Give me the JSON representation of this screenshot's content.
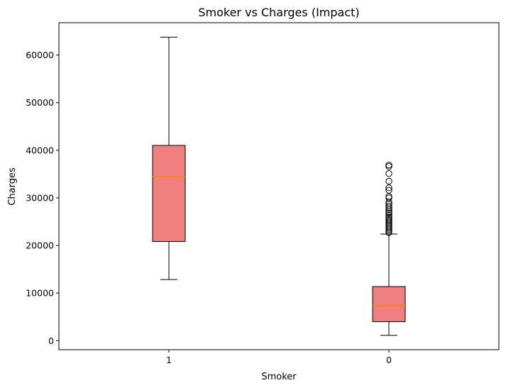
{
  "chart_data": {
    "type": "box",
    "title": "Smoker vs Charges (Impact)",
    "xlabel": "Smoker",
    "ylabel": "Charges",
    "ylim": [
      -1900,
      66800
    ],
    "yticks": [
      0,
      10000,
      20000,
      30000,
      40000,
      50000,
      60000
    ],
    "categories": [
      "1",
      "0"
    ],
    "grid": false,
    "series": [
      {
        "category": "1",
        "whisker_low": 12830,
        "q1": 20830,
        "median": 34460,
        "q3": 41020,
        "whisker_high": 63770,
        "outliers": []
      },
      {
        "category": "0",
        "whisker_low": 1120,
        "q1": 3990,
        "median": 7350,
        "q3": 11360,
        "whisker_high": 22400,
        "outliers": [
          22700,
          23000,
          23300,
          23600,
          23900,
          24200,
          24500,
          24800,
          25100,
          25400,
          25700,
          26000,
          26400,
          26800,
          27100,
          27500,
          27900,
          28300,
          28700,
          29100,
          30000,
          30300,
          31600,
          32100,
          33500,
          35100,
          36600,
          36900
        ]
      }
    ],
    "colors": {
      "box_fill": "#f08080",
      "box_edge": "#000000",
      "median": "#ff7f0e",
      "whisker": "#000000",
      "flier_edge": "#000000"
    }
  }
}
